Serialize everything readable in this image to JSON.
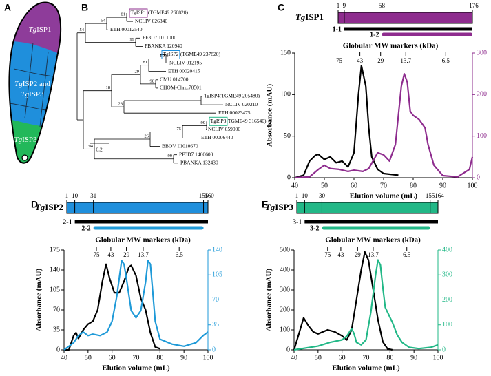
{
  "panel_labels": [
    "A",
    "B",
    "C",
    "D",
    "E"
  ],
  "cell_diagram": {
    "labels": [
      "TgISP1",
      "TgISP2 and",
      "TgISP3",
      "TgISP3"
    ]
  },
  "tree": {
    "leaves": [
      {
        "name": "TgISP1",
        "locus": "(TGME49 260820)",
        "box": "#8e2c8e"
      },
      "NCLIV 026340",
      "ETH 00012540",
      "PF3D7 1011000",
      "PBANKA 120940",
      {
        "name": "TgISP2",
        "locus": "(TGME49 237820)",
        "box": "#1f8fdc"
      },
      "NCLIV 012195",
      "ETH 00020415",
      "CMU 014700",
      "CHOM-Chro.70501",
      "TgISP4(TGME49 205480)",
      "NCLIV 020210",
      "ETH 00023475",
      {
        "name": "TgISP3",
        "locus": "TGME49 316540)",
        "box": "#22b887"
      },
      "NCLIV 059000",
      "ETH 00006440",
      "BBOV III010670",
      "PF3D7 1460600",
      "PBANKA 132430"
    ],
    "bootstrap": [
      81,
      54,
      54,
      99,
      89,
      81,
      29,
      98,
      18,
      28,
      99,
      75,
      26,
      94,
      99
    ],
    "scale": "0.2"
  },
  "chart_data": [
    {
      "type": "line",
      "protein": {
        "name": "TgISP1",
        "color": "#8e2c8e",
        "lim": [
          1,
          176
        ],
        "ticks": [
          1,
          9,
          58,
          176
        ],
        "constructs": [
          {
            "name": "1-1",
            "range": [
              9,
              176
            ],
            "color": "#000000"
          },
          {
            "name": "1-2",
            "range": [
              58,
              176
            ],
            "color": "#8e2c8e"
          }
        ]
      },
      "mw_markers": {
        "title": "Globular MW markers (kDa)",
        "labels": [
          75,
          43,
          29,
          13.7,
          6.5
        ],
        "x": [
          55,
          62,
          69,
          77.5,
          91
        ]
      },
      "xlabel": "Elution volume (mL)",
      "ylabel": "Absorbance (mAU)",
      "xlim": [
        40,
        100
      ],
      "xticks": [
        40,
        50,
        60,
        70,
        80,
        90,
        100
      ],
      "ylim": [
        0,
        150
      ],
      "yticks": [
        0,
        50,
        100,
        150
      ],
      "y2lim": [
        0,
        300
      ],
      "y2ticks": [
        0,
        100,
        200,
        300
      ],
      "series": [
        {
          "color": "#000000",
          "x": [
            40,
            43,
            45,
            47,
            48,
            50,
            52,
            54,
            56,
            58,
            60,
            61.5,
            62.5,
            64,
            65,
            66,
            68,
            70,
            75
          ],
          "values": [
            0,
            3,
            20,
            27,
            28,
            22,
            25,
            18,
            20,
            13,
            30,
            100,
            135,
            110,
            60,
            25,
            10,
            5,
            3
          ]
        },
        {
          "color": "#8e2c8e",
          "axis": "y2",
          "x": [
            40,
            45,
            48,
            50,
            52,
            55,
            58,
            60,
            63,
            65,
            68,
            70,
            72,
            74,
            76,
            77,
            78,
            79,
            80,
            82,
            84,
            85,
            87,
            90,
            95,
            99,
            100
          ],
          "values": [
            0,
            2,
            20,
            30,
            22,
            20,
            15,
            18,
            15,
            22,
            60,
            55,
            40,
            80,
            220,
            250,
            230,
            160,
            150,
            140,
            120,
            80,
            30,
            5,
            2,
            20,
            50
          ]
        }
      ]
    },
    {
      "type": "line",
      "protein": {
        "name": "TgISP2",
        "color": "#1f8fdc",
        "lim": [
          1,
          160
        ],
        "ticks": [
          1,
          10,
          31,
          155,
          160
        ],
        "constructs": [
          {
            "name": "2-1",
            "range": [
              10,
              160
            ],
            "color": "#000000"
          },
          {
            "name": "2-2",
            "range": [
              31,
              155
            ],
            "color": "#1f9ad8"
          }
        ]
      },
      "mw_markers": {
        "title": "Globular MW markers (kDa)",
        "labels": [
          75,
          43,
          29,
          13.7,
          6.5
        ],
        "x": [
          53.5,
          59.5,
          66,
          73,
          88
        ]
      },
      "xlabel": "Elution volume (mL)",
      "ylabel": "Absorbance (mAU)",
      "xlim": [
        40,
        100
      ],
      "xticks": [
        40,
        50,
        60,
        70,
        80,
        90,
        100
      ],
      "ylim": [
        0,
        175
      ],
      "yticks": [
        0,
        35,
        70,
        105,
        140,
        175
      ],
      "y2lim": [
        0,
        140
      ],
      "y2ticks": [
        0,
        35,
        70,
        105,
        140
      ],
      "series": [
        {
          "color": "#000000",
          "x": [
            40,
            42,
            44,
            45,
            46,
            48,
            50,
            52,
            54,
            56,
            57.5,
            59,
            61,
            63,
            65,
            67,
            68,
            70,
            72,
            74,
            76,
            78,
            80
          ],
          "values": [
            0,
            0,
            25,
            30,
            20,
            35,
            45,
            50,
            70,
            120,
            150,
            125,
            100,
            100,
            120,
            145,
            148,
            130,
            90,
            70,
            30,
            5,
            2
          ]
        },
        {
          "color": "#1f9ad8",
          "axis": "y2",
          "x": [
            40,
            44,
            46,
            48,
            50,
            52,
            55,
            58,
            60,
            62,
            64,
            65,
            66,
            68,
            70,
            72,
            74,
            75,
            76,
            77,
            78,
            80,
            85,
            90,
            95,
            98,
            100
          ],
          "values": [
            0,
            10,
            20,
            25,
            20,
            22,
            20,
            25,
            40,
            75,
            125,
            120,
            100,
            55,
            45,
            55,
            95,
            125,
            120,
            80,
            40,
            15,
            8,
            5,
            10,
            20,
            25
          ]
        }
      ]
    },
    {
      "type": "line",
      "protein": {
        "name": "TgISP3",
        "color": "#22b887",
        "lim": [
          1,
          164
        ],
        "ticks": [
          1,
          10,
          30,
          155,
          164
        ],
        "constructs": [
          {
            "name": "3-1",
            "range": [
              10,
              164
            ],
            "color": "#000000"
          },
          {
            "name": "3-2",
            "range": [
              30,
              155
            ],
            "color": "#22b887"
          }
        ]
      },
      "mw_markers": {
        "title": "Globular MW markers (kDa)",
        "labels": [
          75,
          43,
          29,
          13.7,
          6.5
        ],
        "x": [
          54,
          59.5,
          66.5,
          73,
          87
        ]
      },
      "xlabel": "Elution volume (mL)",
      "ylabel": "Absorbance (mAU)",
      "xlim": [
        40,
        100
      ],
      "xticks": [
        40,
        50,
        60,
        70,
        80,
        90,
        100
      ],
      "ylim": [
        0,
        500
      ],
      "yticks": [
        0,
        100,
        200,
        300,
        400,
        500
      ],
      "y2lim": [
        0,
        400
      ],
      "y2ticks": [
        0,
        100,
        200,
        300,
        400
      ],
      "series": [
        {
          "color": "#000000",
          "x": [
            40,
            42,
            44,
            46,
            48,
            50,
            54,
            57,
            60,
            62,
            64,
            66,
            68,
            69.5,
            71,
            73,
            75,
            77,
            79,
            81
          ],
          "values": [
            0,
            80,
            160,
            120,
            90,
            80,
            100,
            90,
            70,
            50,
            100,
            250,
            400,
            490,
            450,
            300,
            150,
            40,
            5,
            0
          ]
        },
        {
          "color": "#22b887",
          "axis": "y2",
          "x": [
            40,
            50,
            55,
            60,
            62,
            64,
            65,
            66,
            68,
            70,
            72,
            74,
            75,
            76,
            77,
            78,
            79,
            80,
            81,
            83,
            85,
            88,
            92,
            97,
            100
          ],
          "values": [
            0,
            15,
            30,
            40,
            55,
            85,
            65,
            30,
            20,
            40,
            150,
            300,
            360,
            340,
            250,
            170,
            150,
            130,
            110,
            60,
            30,
            10,
            5,
            10,
            20
          ]
        }
      ]
    }
  ]
}
